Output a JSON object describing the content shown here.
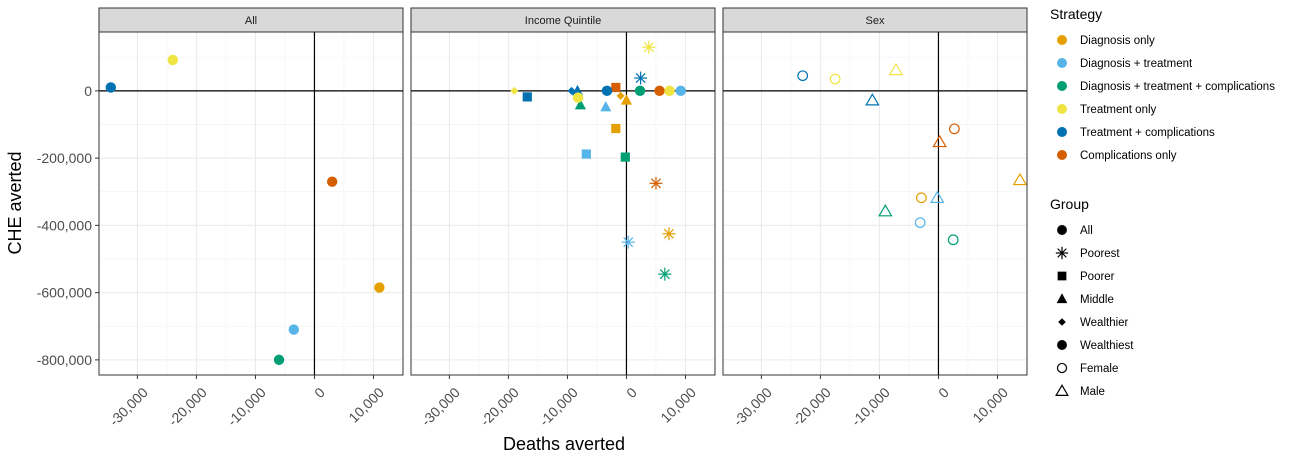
{
  "colors": {
    "Diagnosis only": "#E69F00",
    "Diagnosis + treatment": "#56B4E9",
    "Diagnosis + treatment + complications": "#009E73",
    "Treatment only": "#F0E442",
    "Treatment + complications": "#0072B2",
    "Complications only": "#D55E00"
  },
  "chart_data": {
    "type": "scatter",
    "xlabel": "Deaths averted",
    "ylabel": "CHE averted",
    "xlim": [
      -36500,
      15000
    ],
    "ylim": [
      -845000,
      175000
    ],
    "x_ticks": [
      -30000,
      -20000,
      -10000,
      0,
      10000
    ],
    "x_tick_labels": [
      "-30,000",
      "-20,000",
      "-10,000",
      "0",
      "10,000"
    ],
    "y_ticks": [
      -800000,
      -600000,
      -400000,
      -200000,
      0
    ],
    "y_tick_labels": [
      "-800,000",
      "-600,000",
      "-400,000",
      "-200,000",
      "0"
    ],
    "grid": true,
    "legend_position": "right",
    "facets": [
      "All",
      "Income Quintile",
      "Sex"
    ],
    "legend": {
      "strategy_title": "Strategy",
      "strategies": [
        "Diagnosis only",
        "Diagnosis + treatment",
        "Diagnosis + treatment + complications",
        "Treatment only",
        "Treatment + complications",
        "Complications only"
      ],
      "group_title": "Group",
      "groups": [
        "All",
        "Poorest",
        "Poorer",
        "Middle",
        "Wealthier",
        "Wealthiest",
        "Female",
        "Male"
      ]
    },
    "points": [
      {
        "facet": "All",
        "strategy": "Treatment + complications",
        "group": "All",
        "x": -34500,
        "y": 10000
      },
      {
        "facet": "All",
        "strategy": "Treatment only",
        "group": "All",
        "x": -24000,
        "y": 92000
      },
      {
        "facet": "All",
        "strategy": "Complications only",
        "group": "All",
        "x": 3000,
        "y": -270000
      },
      {
        "facet": "All",
        "strategy": "Diagnosis only",
        "group": "All",
        "x": 11000,
        "y": -585000
      },
      {
        "facet": "All",
        "strategy": "Diagnosis + treatment",
        "group": "All",
        "x": -3500,
        "y": -710000
      },
      {
        "facet": "All",
        "strategy": "Diagnosis + treatment + complications",
        "group": "All",
        "x": -6000,
        "y": -800000
      },
      {
        "facet": "Income Quintile",
        "strategy": "Treatment only",
        "group": "Poorest",
        "x": 3800,
        "y": 130000
      },
      {
        "facet": "Income Quintile",
        "strategy": "Treatment + complications",
        "group": "Poorest",
        "x": 2400,
        "y": 38000
      },
      {
        "facet": "Income Quintile",
        "strategy": "Complications only",
        "group": "Poorest",
        "x": 5000,
        "y": -275000
      },
      {
        "facet": "Income Quintile",
        "strategy": "Diagnosis only",
        "group": "Poorest",
        "x": 7200,
        "y": -425000
      },
      {
        "facet": "Income Quintile",
        "strategy": "Diagnosis + treatment",
        "group": "Poorest",
        "x": 300,
        "y": -450000
      },
      {
        "facet": "Income Quintile",
        "strategy": "Diagnosis + treatment + complications",
        "group": "Poorest",
        "x": 6500,
        "y": -545000
      },
      {
        "facet": "Income Quintile",
        "strategy": "Treatment + complications",
        "group": "Poorer",
        "x": -16800,
        "y": -18000
      },
      {
        "facet": "Income Quintile",
        "strategy": "Complications only",
        "group": "Poorer",
        "x": -1800,
        "y": 10000
      },
      {
        "facet": "Income Quintile",
        "strategy": "Diagnosis only",
        "group": "Poorer",
        "x": -1800,
        "y": -112000
      },
      {
        "facet": "Income Quintile",
        "strategy": "Diagnosis + treatment",
        "group": "Poorer",
        "x": -6800,
        "y": -188000
      },
      {
        "facet": "Income Quintile",
        "strategy": "Diagnosis + treatment + complications",
        "group": "Poorer",
        "x": -200,
        "y": -197000
      },
      {
        "facet": "Income Quintile",
        "strategy": "Diagnosis + treatment + complications",
        "group": "Middle",
        "x": -7800,
        "y": -42000
      },
      {
        "facet": "Income Quintile",
        "strategy": "Treatment only",
        "group": "Middle",
        "x": -8200,
        "y": -15000
      },
      {
        "facet": "Income Quintile",
        "strategy": "Diagnosis + treatment",
        "group": "Middle",
        "x": -3500,
        "y": -48000
      },
      {
        "facet": "Income Quintile",
        "strategy": "Diagnosis only",
        "group": "Middle",
        "x": 0,
        "y": -28000
      },
      {
        "facet": "Income Quintile",
        "strategy": "Treatment + complications",
        "group": "Middle",
        "x": -8300,
        "y": 0
      },
      {
        "facet": "Income Quintile",
        "strategy": "Treatment only",
        "group": "Wealthier",
        "x": -19000,
        "y": 0
      },
      {
        "facet": "Income Quintile",
        "strategy": "Treatment + complications",
        "group": "Wealthier",
        "x": -9300,
        "y": 0
      },
      {
        "facet": "Income Quintile",
        "strategy": "Diagnosis only",
        "group": "Wealthier",
        "x": -1000,
        "y": -15000
      },
      {
        "facet": "Income Quintile",
        "strategy": "Treatment only",
        "group": "Wealthiest",
        "x": -8200,
        "y": -20000
      },
      {
        "facet": "Income Quintile",
        "strategy": "Treatment + complications",
        "group": "Wealthiest",
        "x": -3300,
        "y": 0
      },
      {
        "facet": "Income Quintile",
        "strategy": "Diagnosis + treatment + complications",
        "group": "Wealthiest",
        "x": 2300,
        "y": 0
      },
      {
        "facet": "Income Quintile",
        "strategy": "Complications only",
        "group": "Wealthiest",
        "x": 5600,
        "y": 0
      },
      {
        "facet": "Income Quintile",
        "strategy": "Treatment only",
        "group": "Wealthiest",
        "x": 7300,
        "y": 0
      },
      {
        "facet": "Income Quintile",
        "strategy": "Diagnosis + treatment",
        "group": "Wealthiest",
        "x": 9200,
        "y": 0
      },
      {
        "facet": "Sex",
        "strategy": "Treatment + complications",
        "group": "Female",
        "x": -23000,
        "y": 45000
      },
      {
        "facet": "Sex",
        "strategy": "Treatment only",
        "group": "Female",
        "x": -17500,
        "y": 35000
      },
      {
        "facet": "Sex",
        "strategy": "Complications only",
        "group": "Female",
        "x": 2700,
        "y": -113000
      },
      {
        "facet": "Sex",
        "strategy": "Diagnosis only",
        "group": "Female",
        "x": -2900,
        "y": -318000
      },
      {
        "facet": "Sex",
        "strategy": "Diagnosis + treatment",
        "group": "Female",
        "x": -3100,
        "y": -392000
      },
      {
        "facet": "Sex",
        "strategy": "Diagnosis + treatment + complications",
        "group": "Female",
        "x": 2500,
        "y": -443000
      },
      {
        "facet": "Sex",
        "strategy": "Treatment only",
        "group": "Male",
        "x": -7200,
        "y": 62000
      },
      {
        "facet": "Sex",
        "strategy": "Treatment + complications",
        "group": "Male",
        "x": -11200,
        "y": -28000
      },
      {
        "facet": "Sex",
        "strategy": "Complications only",
        "group": "Male",
        "x": 200,
        "y": -152000
      },
      {
        "facet": "Sex",
        "strategy": "Diagnosis + treatment",
        "group": "Male",
        "x": -200,
        "y": -318000
      },
      {
        "facet": "Sex",
        "strategy": "Diagnosis only",
        "group": "Male",
        "x": 13800,
        "y": -265000
      },
      {
        "facet": "Sex",
        "strategy": "Diagnosis + treatment + complications",
        "group": "Male",
        "x": -9000,
        "y": -358000
      }
    ]
  }
}
